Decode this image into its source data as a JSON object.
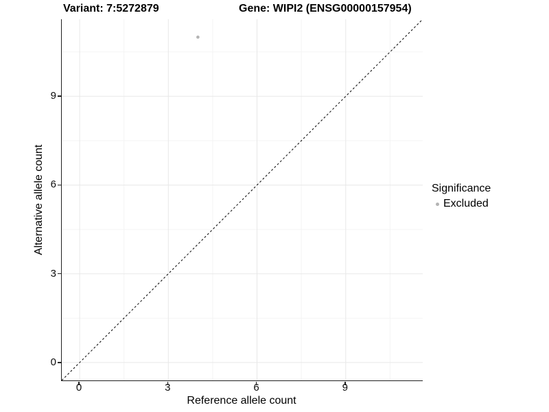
{
  "chart_data": {
    "type": "scatter",
    "title_variant": "Variant: 7:5272879",
    "title_gene": "Gene: WIPI2 (ENSG00000157954)",
    "xlabel": "Reference allele count",
    "ylabel": "Alternative allele count",
    "xlim": [
      -0.605,
      11.605
    ],
    "ylim": [
      -0.605,
      11.605
    ],
    "x_ticks": [
      0,
      3,
      6,
      9
    ],
    "y_ticks": [
      0,
      3,
      6,
      9
    ],
    "x_minor_ticks": [
      1.5,
      4.5,
      7.5,
      10.5
    ],
    "y_minor_ticks": [
      1.5,
      4.5,
      7.5,
      10.5
    ],
    "grid": true,
    "series": [
      {
        "name": "Excluded",
        "color": "#b4b4b4",
        "points": [
          {
            "x": 4,
            "y": 11
          }
        ]
      }
    ],
    "identity_line": {
      "slope": 1,
      "intercept": 0,
      "style": "dashed",
      "color": "#000000"
    },
    "legend": {
      "position": "right",
      "title": "Significance",
      "entries": [
        {
          "label": "Excluded",
          "color": "#b4b4b4"
        }
      ]
    },
    "colors": {
      "grid_major": "#e8e8e8",
      "grid_minor": "#f4f4f4",
      "axis_line": "#1f1f1f",
      "tick_text": "#0d0d0d",
      "background": "#ffffff"
    }
  }
}
